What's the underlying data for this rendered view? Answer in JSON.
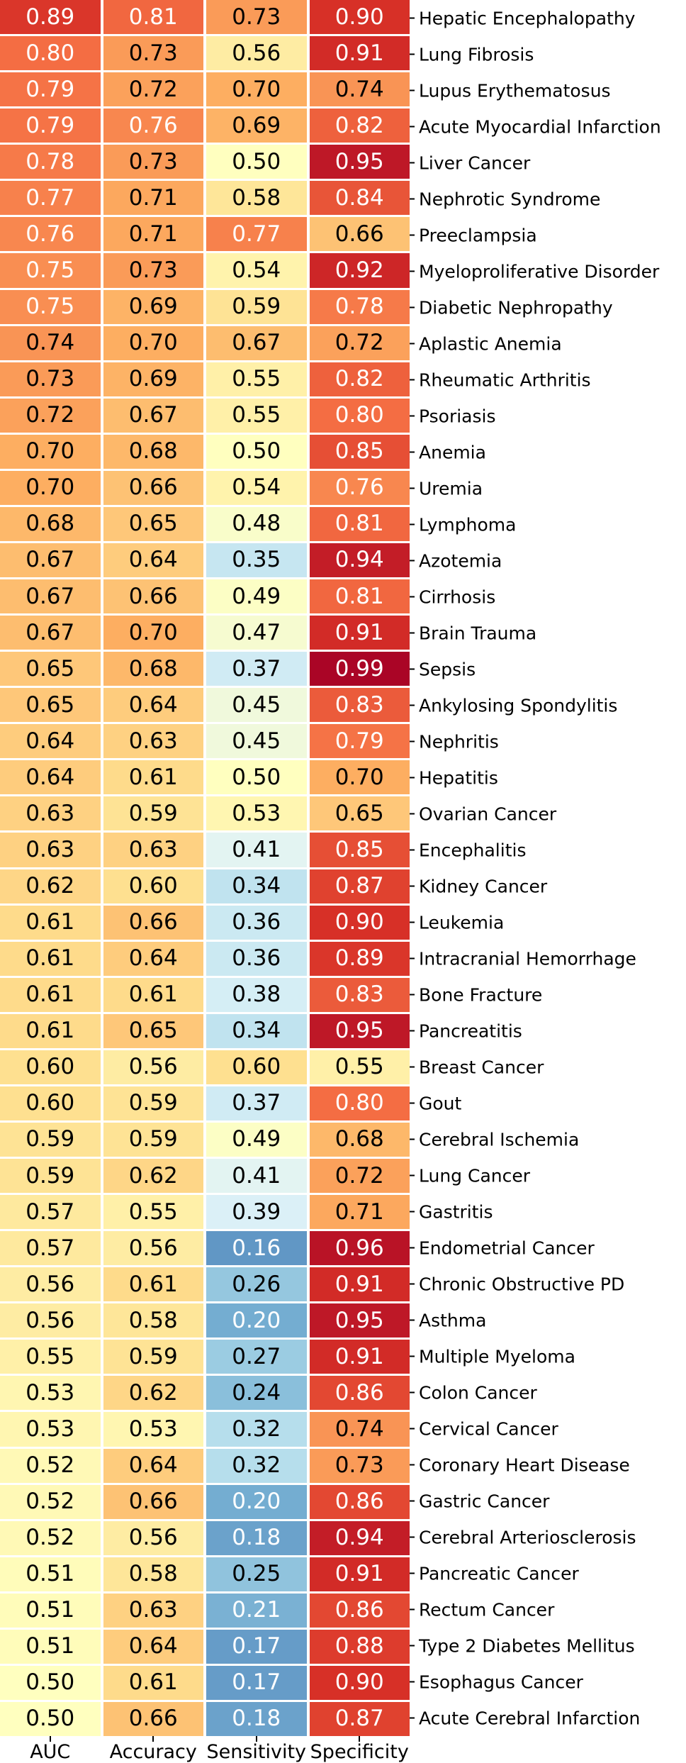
{
  "chart_data": {
    "type": "heatmap",
    "columns": [
      "AUC",
      "Accuracy",
      "Sensitivity",
      "Specificity"
    ],
    "rows": [
      {
        "label": "Hepatic Encephalopathy",
        "values": [
          0.89,
          0.81,
          0.73,
          0.9
        ]
      },
      {
        "label": "Lung Fibrosis",
        "values": [
          0.8,
          0.73,
          0.56,
          0.91
        ]
      },
      {
        "label": "Lupus Erythematosus",
        "values": [
          0.79,
          0.72,
          0.7,
          0.74
        ]
      },
      {
        "label": "Acute Myocardial Infarction",
        "values": [
          0.79,
          0.76,
          0.69,
          0.82
        ]
      },
      {
        "label": "Liver Cancer",
        "values": [
          0.78,
          0.73,
          0.5,
          0.95
        ]
      },
      {
        "label": "Nephrotic Syndrome",
        "values": [
          0.77,
          0.71,
          0.58,
          0.84
        ]
      },
      {
        "label": "Preeclampsia",
        "values": [
          0.76,
          0.71,
          0.77,
          0.66
        ]
      },
      {
        "label": "Myeloproliferative Disorder",
        "values": [
          0.75,
          0.73,
          0.54,
          0.92
        ]
      },
      {
        "label": "Diabetic Nephropathy",
        "values": [
          0.75,
          0.69,
          0.59,
          0.78
        ]
      },
      {
        "label": "Aplastic Anemia",
        "values": [
          0.74,
          0.7,
          0.67,
          0.72
        ]
      },
      {
        "label": "Rheumatic Arthritis",
        "values": [
          0.73,
          0.69,
          0.55,
          0.82
        ]
      },
      {
        "label": "Psoriasis",
        "values": [
          0.72,
          0.67,
          0.55,
          0.8
        ]
      },
      {
        "label": "Anemia",
        "values": [
          0.7,
          0.68,
          0.5,
          0.85
        ]
      },
      {
        "label": "Uremia",
        "values": [
          0.7,
          0.66,
          0.54,
          0.76
        ]
      },
      {
        "label": "Lymphoma",
        "values": [
          0.68,
          0.65,
          0.48,
          0.81
        ]
      },
      {
        "label": "Azotemia",
        "values": [
          0.67,
          0.64,
          0.35,
          0.94
        ]
      },
      {
        "label": "Cirrhosis",
        "values": [
          0.67,
          0.66,
          0.49,
          0.81
        ]
      },
      {
        "label": "Brain Trauma",
        "values": [
          0.67,
          0.7,
          0.47,
          0.91
        ]
      },
      {
        "label": "Sepsis",
        "values": [
          0.65,
          0.68,
          0.37,
          0.99
        ]
      },
      {
        "label": "Ankylosing Spondylitis",
        "values": [
          0.65,
          0.64,
          0.45,
          0.83
        ]
      },
      {
        "label": "Nephritis",
        "values": [
          0.64,
          0.63,
          0.45,
          0.79
        ]
      },
      {
        "label": "Hepatitis",
        "values": [
          0.64,
          0.61,
          0.5,
          0.7
        ]
      },
      {
        "label": "Ovarian Cancer",
        "values": [
          0.63,
          0.59,
          0.53,
          0.65
        ]
      },
      {
        "label": "Encephalitis",
        "values": [
          0.63,
          0.63,
          0.41,
          0.85
        ]
      },
      {
        "label": "Kidney Cancer",
        "values": [
          0.62,
          0.6,
          0.34,
          0.87
        ]
      },
      {
        "label": "Leukemia",
        "values": [
          0.61,
          0.66,
          0.36,
          0.9
        ]
      },
      {
        "label": "Intracranial Hemorrhage",
        "values": [
          0.61,
          0.64,
          0.36,
          0.89
        ]
      },
      {
        "label": "Bone Fracture",
        "values": [
          0.61,
          0.61,
          0.38,
          0.83
        ]
      },
      {
        "label": "Pancreatitis",
        "values": [
          0.61,
          0.65,
          0.34,
          0.95
        ]
      },
      {
        "label": "Breast Cancer",
        "values": [
          0.6,
          0.56,
          0.6,
          0.55
        ]
      },
      {
        "label": "Gout",
        "values": [
          0.6,
          0.59,
          0.37,
          0.8
        ]
      },
      {
        "label": "Cerebral Ischemia",
        "values": [
          0.59,
          0.59,
          0.49,
          0.68
        ]
      },
      {
        "label": "Lung Cancer",
        "values": [
          0.59,
          0.62,
          0.41,
          0.72
        ]
      },
      {
        "label": "Gastritis",
        "values": [
          0.57,
          0.55,
          0.39,
          0.71
        ]
      },
      {
        "label": "Endometrial Cancer",
        "values": [
          0.57,
          0.56,
          0.16,
          0.96
        ]
      },
      {
        "label": "Chronic Obstructive PD",
        "values": [
          0.56,
          0.61,
          0.26,
          0.91
        ]
      },
      {
        "label": "Asthma",
        "values": [
          0.56,
          0.58,
          0.2,
          0.95
        ]
      },
      {
        "label": "Multiple Myeloma",
        "values": [
          0.55,
          0.59,
          0.27,
          0.91
        ]
      },
      {
        "label": "Colon Cancer",
        "values": [
          0.53,
          0.62,
          0.24,
          0.86
        ]
      },
      {
        "label": "Cervical Cancer",
        "values": [
          0.53,
          0.53,
          0.32,
          0.74
        ]
      },
      {
        "label": "Coronary Heart Disease",
        "values": [
          0.52,
          0.64,
          0.32,
          0.73
        ]
      },
      {
        "label": "Gastric Cancer",
        "values": [
          0.52,
          0.66,
          0.2,
          0.86
        ]
      },
      {
        "label": "Cerebral Arteriosclerosis",
        "values": [
          0.52,
          0.56,
          0.18,
          0.94
        ]
      },
      {
        "label": "Pancreatic Cancer",
        "values": [
          0.51,
          0.58,
          0.25,
          0.91
        ]
      },
      {
        "label": "Rectum Cancer",
        "values": [
          0.51,
          0.63,
          0.21,
          0.86
        ]
      },
      {
        "label": "Type 2 Diabetes Mellitus",
        "values": [
          0.51,
          0.64,
          0.17,
          0.88
        ]
      },
      {
        "label": "Esophagus Cancer",
        "values": [
          0.5,
          0.61,
          0.17,
          0.9
        ]
      },
      {
        "label": "Acute Cerebral Infarction",
        "values": [
          0.5,
          0.66,
          0.18,
          0.87
        ]
      }
    ],
    "value_decimals": 2,
    "colormap": {
      "name": "RdYlBu_r",
      "anchors_low_to_high": [
        "#313695",
        "#4575b4",
        "#74add1",
        "#abd9e9",
        "#e0f3f8",
        "#ffffbf",
        "#fee090",
        "#fdae61",
        "#f46d43",
        "#d73027",
        "#a50026"
      ],
      "vmin": 0.0,
      "vmax": 1.0,
      "luminance_text_threshold": 0.408,
      "dark_text_color": "#000000",
      "light_text_color": "#ffffff"
    },
    "layout": {
      "grid_line_color": "#ffffff",
      "tick_color": "#000000",
      "legend": "none",
      "title": ""
    }
  }
}
